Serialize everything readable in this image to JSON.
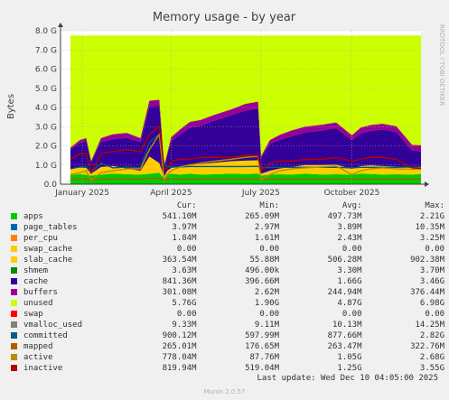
{
  "chart_data": {
    "type": "area",
    "title": "Memory usage - by year",
    "ylabel": "Bytes",
    "side_text": "RRDTOOL / TOBI OETIKER",
    "yticks": [
      "0.0",
      "1.0 G",
      "2.0 G",
      "3.0 G",
      "4.0 G",
      "5.0 G",
      "6.0 G",
      "7.0 G",
      "8.0 G"
    ],
    "ylim": [
      0,
      8.0
    ],
    "y_unit": "GiB",
    "x_labels": [
      "January 2025",
      "April 2025",
      "July 2025",
      "October 2025"
    ],
    "x_label_dates": [
      "2025-01-01",
      "2025-04-01",
      "2025-07-01",
      "2025-10-01"
    ],
    "x_domain": [
      "2024-12-10",
      "2025-12-10"
    ],
    "grid": true,
    "legend_placement": "below",
    "legend_headers": [
      "Cur:",
      "Min:",
      "Avg:",
      "Max:"
    ],
    "series": [
      {
        "name": "apps",
        "color": "#00cc00",
        "cur": "541.10M",
        "min": "265.09M",
        "avg": "497.73M",
        "max": "2.21G"
      },
      {
        "name": "page_tables",
        "color": "#0066b3",
        "cur": "3.97M",
        "min": "2.97M",
        "avg": "3.89M",
        "max": "10.35M"
      },
      {
        "name": "per_cpu",
        "color": "#ff8000",
        "cur": "1.84M",
        "min": "1.61M",
        "avg": "2.43M",
        "max": "3.25M"
      },
      {
        "name": "swap_cache",
        "color": "#ffcc00",
        "cur": "0.00",
        "min": "0.00",
        "avg": "0.00",
        "max": "0.00"
      },
      {
        "name": "slab_cache",
        "color": "#ffcc00",
        "cur": "363.54M",
        "min": "55.88M",
        "avg": "506.28M",
        "max": "902.38M"
      },
      {
        "name": "shmem",
        "color": "#008f00",
        "cur": "3.63M",
        "min": "496.00k",
        "avg": "3.30M",
        "max": "3.70M"
      },
      {
        "name": "cache",
        "color": "#330099",
        "cur": "841.36M",
        "min": "396.66M",
        "avg": "1.66G",
        "max": "3.46G"
      },
      {
        "name": "buffers",
        "color": "#990099",
        "cur": "301.08M",
        "min": "2.62M",
        "avg": "244.94M",
        "max": "376.44M"
      },
      {
        "name": "unused",
        "color": "#ccff00",
        "cur": "5.76G",
        "min": "1.90G",
        "avg": "4.87G",
        "max": "6.98G"
      },
      {
        "name": "swap",
        "color": "#ff0000",
        "cur": "0.00",
        "min": "0.00",
        "avg": "0.00",
        "max": "0.00"
      },
      {
        "name": "vmalloc_used",
        "color": "#808080",
        "cur": "9.33M",
        "min": "9.11M",
        "avg": "10.13M",
        "max": "14.25M"
      },
      {
        "name": "committed",
        "color": "#005c80",
        "cur": "900.12M",
        "min": "597.99M",
        "avg": "877.66M",
        "max": "2.82G"
      },
      {
        "name": "mapped",
        "color": "#b35a00",
        "cur": "265.01M",
        "min": "176.65M",
        "avg": "263.47M",
        "max": "322.76M"
      },
      {
        "name": "active",
        "color": "#b38f00",
        "cur": "778.04M",
        "min": "87.76M",
        "avg": "1.05G",
        "max": "2.68G"
      },
      {
        "name": "inactive",
        "color": "#b30000",
        "cur": "819.94M",
        "min": "519.04M",
        "avg": "1.25G",
        "max": "3.55G"
      }
    ],
    "plot_series": {
      "x": [
        "2024-12-20",
        "2024-12-30",
        "2025-01-05",
        "2025-01-10",
        "2025-01-20",
        "2025-02-01",
        "2025-02-15",
        "2025-03-01",
        "2025-03-10",
        "2025-03-20",
        "2025-03-25",
        "2025-03-28",
        "2025-04-01",
        "2025-04-10",
        "2025-04-20",
        "2025-05-01",
        "2025-05-15",
        "2025-06-01",
        "2025-06-15",
        "2025-06-28",
        "2025-07-01",
        "2025-07-10",
        "2025-07-20",
        "2025-08-01",
        "2025-08-15",
        "2025-09-01",
        "2025-09-15",
        "2025-10-01",
        "2025-10-10",
        "2025-10-20",
        "2025-11-01",
        "2025-11-15",
        "2025-12-01",
        "2025-12-10"
      ],
      "apps": [
        0.5,
        0.52,
        0.5,
        0.45,
        0.5,
        0.55,
        0.52,
        0.5,
        0.55,
        0.6,
        0.3,
        0.5,
        0.55,
        0.5,
        0.55,
        0.5,
        0.52,
        0.55,
        0.53,
        0.55,
        0.45,
        0.5,
        0.52,
        0.5,
        0.55,
        0.5,
        0.52,
        0.5,
        0.55,
        0.53,
        0.5,
        0.52,
        0.5,
        0.53
      ],
      "slab_cache": [
        0.3,
        0.35,
        0.35,
        0.1,
        0.4,
        0.4,
        0.3,
        0.2,
        0.9,
        0.5,
        0.1,
        0.2,
        0.3,
        0.4,
        0.5,
        0.55,
        0.6,
        0.65,
        0.7,
        0.7,
        0.1,
        0.2,
        0.3,
        0.4,
        0.45,
        0.5,
        0.5,
        0.3,
        0.4,
        0.45,
        0.45,
        0.4,
        0.35,
        0.36
      ],
      "cache": [
        1.0,
        1.3,
        1.4,
        0.6,
        1.3,
        1.4,
        1.6,
        1.5,
        2.6,
        3.0,
        0.5,
        0.8,
        1.4,
        1.7,
        1.9,
        2.0,
        2.2,
        2.4,
        2.6,
        2.7,
        0.8,
        1.4,
        1.5,
        1.6,
        1.7,
        1.8,
        1.9,
        1.5,
        1.7,
        1.8,
        1.9,
        1.8,
        0.9,
        0.84
      ],
      "buffers": [
        0.1,
        0.15,
        0.15,
        0.05,
        0.2,
        0.25,
        0.25,
        0.2,
        0.3,
        0.3,
        0.05,
        0.1,
        0.2,
        0.25,
        0.3,
        0.3,
        0.3,
        0.3,
        0.35,
        0.35,
        0.1,
        0.2,
        0.25,
        0.3,
        0.3,
        0.3,
        0.3,
        0.25,
        0.3,
        0.3,
        0.3,
        0.3,
        0.3,
        0.3
      ],
      "committed": [
        0.8,
        0.9,
        0.9,
        0.6,
        1.1,
        0.85,
        0.9,
        0.85,
        2.2,
        2.6,
        1.0,
        0.9,
        0.9,
        0.9,
        0.92,
        0.92,
        0.92,
        0.92,
        0.92,
        0.93,
        0.85,
        0.88,
        0.88,
        0.88,
        0.88,
        0.88,
        0.88,
        0.85,
        0.88,
        0.88,
        0.88,
        0.88,
        0.9,
        0.9
      ],
      "active": [
        0.5,
        0.6,
        0.7,
        0.2,
        0.6,
        0.7,
        0.8,
        0.8,
        1.8,
        2.6,
        0.2,
        0.5,
        0.7,
        0.9,
        1.0,
        1.1,
        1.2,
        1.3,
        1.4,
        1.45,
        0.2,
        0.5,
        0.7,
        0.8,
        0.85,
        0.9,
        0.95,
        0.5,
        0.7,
        0.8,
        0.85,
        0.8,
        0.78,
        0.78
      ],
      "inactive": [
        1.3,
        1.6,
        1.6,
        0.6,
        1.6,
        1.7,
        1.8,
        1.7,
        2.6,
        3.0,
        0.8,
        0.8,
        1.2,
        1.3,
        1.3,
        1.4,
        1.4,
        1.4,
        1.5,
        1.5,
        0.7,
        1.1,
        1.2,
        1.2,
        1.3,
        1.3,
        1.4,
        1.2,
        1.3,
        1.4,
        1.4,
        1.3,
        0.85,
        0.82
      ],
      "mapped": [
        0.25,
        0.26,
        0.26,
        0.2,
        0.26,
        0.27,
        0.27,
        0.26,
        0.3,
        0.32,
        0.2,
        0.25,
        0.26,
        0.26,
        0.26,
        0.27,
        0.27,
        0.27,
        0.27,
        0.27,
        0.24,
        0.26,
        0.26,
        0.26,
        0.26,
        0.26,
        0.26,
        0.26,
        0.26,
        0.26,
        0.26,
        0.26,
        0.26,
        0.26
      ]
    },
    "total_memory": 7.75
  },
  "footer": {
    "last_update": "Last update:  Wed Dec 10 04:05:00 2025",
    "munin_version": "Munin 2.0.57"
  }
}
